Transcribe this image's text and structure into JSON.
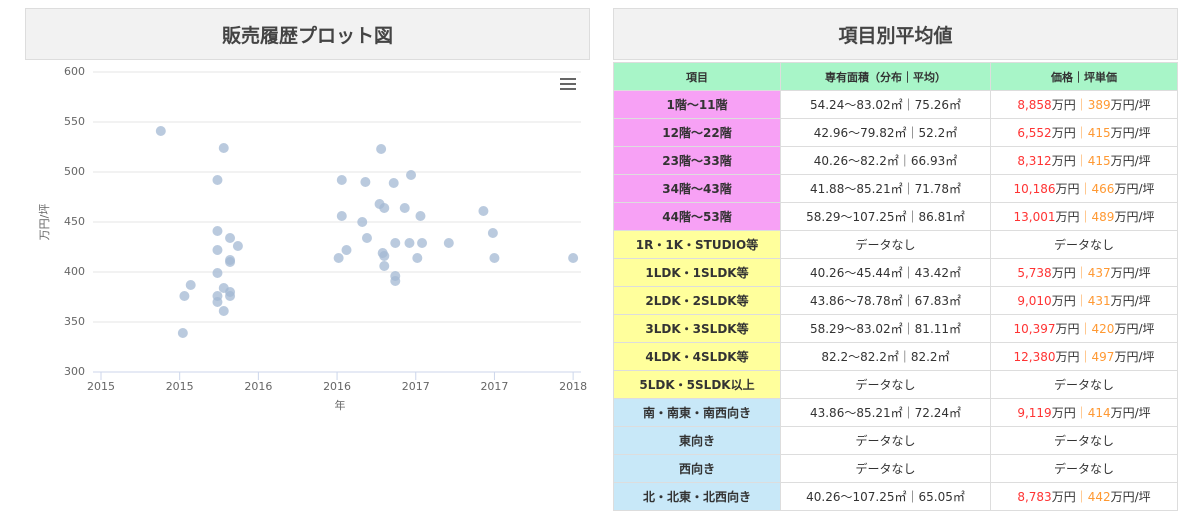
{
  "left_panel": {
    "title": "販売履歴プロット図"
  },
  "chart_data": {
    "type": "scatter",
    "x_label": "年",
    "y_label": "万円/坪",
    "color": "#a3b8d3",
    "x": [
      2015.38,
      2015.53,
      2015.57,
      2015.52,
      2015.78,
      2015.74,
      2015.74,
      2015.74,
      2015.74,
      2015.74,
      2015.74,
      2015.78,
      2015.78,
      2015.82,
      2015.87,
      2015.82,
      2015.82,
      2015.82,
      2015.82,
      2016.51,
      2016.53,
      2016.53,
      2016.56,
      2016.66,
      2016.68,
      2016.69,
      2016.77,
      2016.78,
      2016.8,
      2016.79,
      2016.8,
      2016.8,
      2016.86,
      2016.87,
      2016.87,
      2016.87,
      2016.93,
      2016.97,
      2016.96,
      2017.01,
      2017.03,
      2017.04,
      2017.21,
      2017.43,
      2017.49,
      2017.5,
      2018.0
    ],
    "values": [
      541,
      376,
      387,
      339,
      524,
      492,
      441,
      422,
      399,
      376,
      370,
      384,
      361,
      434,
      426,
      412,
      410,
      380,
      376,
      414,
      492,
      456,
      422,
      450,
      490,
      434,
      468,
      523,
      464,
      419,
      416,
      406,
      489,
      429,
      396,
      391,
      464,
      497,
      429,
      414,
      456,
      429,
      429,
      461,
      439,
      414,
      414
    ],
    "xlim": [
      2015,
      2018.05
    ],
    "ylim": [
      300,
      600
    ],
    "xticks": [
      2015,
      {
        "value": 2015.5,
        "label": "2015"
      },
      2016,
      {
        "value": 2016.5,
        "label": "2016"
      },
      2017,
      {
        "value": 2017.5,
        "label": "2017"
      },
      2018
    ],
    "yticks": [
      300,
      350,
      400,
      450,
      500,
      550,
      600
    ],
    "grid": true
  },
  "right_panel": {
    "title": "項目別平均値"
  },
  "table": {
    "header": [
      "項目",
      "専有面積（分布｜平均）",
      "価格｜坪単価"
    ],
    "header_color": "#a8f5c8",
    "price_unit": "万円",
    "separator": "｜",
    "tsubo_unit": "万円/坪",
    "rows": [
      {
        "item": "1階～11階",
        "area": "54.24～83.02㎡｜75.26㎡",
        "price": "8,858",
        "tsubo": "389",
        "color": "#f7a1f5"
      },
      {
        "item": "12階～22階",
        "area": "42.96～79.82㎡｜52.2㎡",
        "price": "6,552",
        "tsubo": "415",
        "color": "#f7a1f5"
      },
      {
        "item": "23階～33階",
        "area": "40.26～82.2㎡｜66.93㎡",
        "price": "8,312",
        "tsubo": "415",
        "color": "#f7a1f5"
      },
      {
        "item": "34階～43階",
        "area": "41.88～85.21㎡｜71.78㎡",
        "price": "10,186",
        "tsubo": "466",
        "color": "#f7a1f5"
      },
      {
        "item": "44階～53階",
        "area": "58.29～107.25㎡｜86.81㎡",
        "price": "13,001",
        "tsubo": "489",
        "color": "#f7a1f5"
      },
      {
        "item": "1R・1K・STUDIO等",
        "area": "データなし",
        "price_note": "データなし",
        "color": "#ffff9c"
      },
      {
        "item": "1LDK・1SLDK等",
        "area": "40.26～45.44㎡｜43.42㎡",
        "price": "5,738",
        "tsubo": "437",
        "color": "#ffff9c"
      },
      {
        "item": "2LDK・2SLDK等",
        "area": "43.86～78.78㎡｜67.83㎡",
        "price": "9,010",
        "tsubo": "431",
        "color": "#ffff9c"
      },
      {
        "item": "3LDK・3SLDK等",
        "area": "58.29～83.02㎡｜81.11㎡",
        "price": "10,397",
        "tsubo": "420",
        "color": "#ffff9c"
      },
      {
        "item": "4LDK・4SLDK等",
        "area": "82.2～82.2㎡｜82.2㎡",
        "price": "12,380",
        "tsubo": "497",
        "color": "#ffff9c"
      },
      {
        "item": "5LDK・5SLDK以上",
        "area": "データなし",
        "price_note": "データなし",
        "color": "#ffff9c"
      },
      {
        "item": "南・南東・南西向き",
        "area": "43.86～85.21㎡｜72.24㎡",
        "price": "9,119",
        "tsubo": "414",
        "color": "#c8e8f8"
      },
      {
        "item": "東向き",
        "area": "データなし",
        "price_note": "データなし",
        "color": "#c8e8f8"
      },
      {
        "item": "西向き",
        "area": "データなし",
        "price_note": "データなし",
        "color": "#c8e8f8"
      },
      {
        "item": "北・北東・北西向き",
        "area": "40.26～107.25㎡｜65.05㎡",
        "price": "8,783",
        "tsubo": "442",
        "color": "#c8e8f8"
      }
    ]
  }
}
